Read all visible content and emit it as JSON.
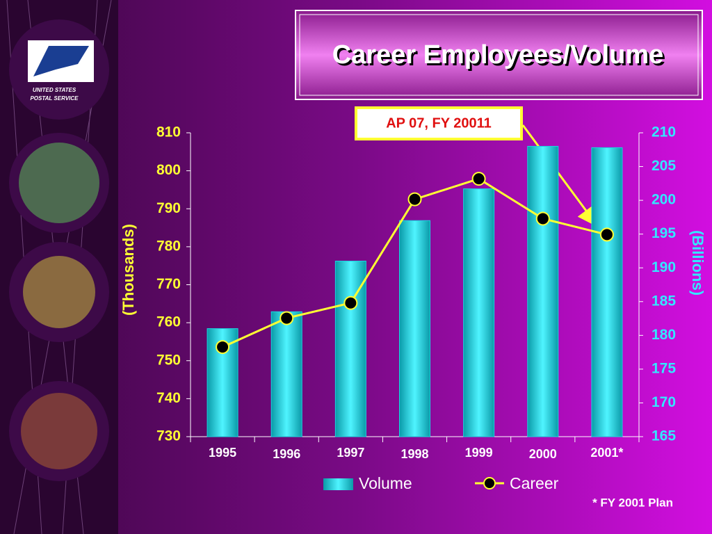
{
  "sidebar": {
    "logo_lines": [
      "UNITED STATES",
      "POSTAL SERVICE"
    ]
  },
  "chart_data": {
    "type": "bar",
    "title": "Career Employees/Volume",
    "annotation": "AP 07, FY 20011",
    "footnote": "* FY 2001 Plan",
    "ylabel": "(Thousands)",
    "y2label": "(Billions)",
    "categories": [
      "1995",
      "1996",
      "1997",
      "1998",
      "1999",
      "2000",
      "2001*"
    ],
    "series": [
      {
        "name": "Volume",
        "type": "bar",
        "color": "#19d6e0",
        "axis": "y2",
        "values": [
          181,
          183.5,
          191,
          197,
          201.7,
          208,
          207.8
        ]
      },
      {
        "name": "Career",
        "type": "line",
        "color": "#ffff33",
        "values": [
          753.6,
          761.2,
          765.2,
          792.5,
          797.9,
          787.4,
          783.2
        ]
      }
    ],
    "ylim": [
      730,
      810
    ],
    "yticks": [
      730,
      740,
      750,
      760,
      770,
      780,
      790,
      800,
      810
    ],
    "y2lim": [
      165,
      210
    ],
    "y2ticks": [
      165,
      170,
      175,
      180,
      185,
      190,
      195,
      200,
      205,
      210
    ]
  }
}
